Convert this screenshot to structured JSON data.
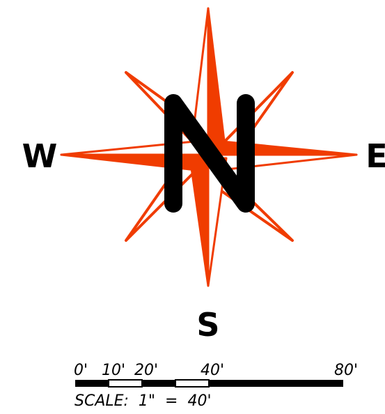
{
  "compass": {
    "north_letter": "N",
    "west_label": "W",
    "east_label": "E",
    "south_label": "S",
    "star_color": "#f03c00",
    "ink_color": "#000000"
  },
  "scale_bar": {
    "tick_labels": [
      "0'",
      "10'",
      "20'",
      "40'",
      "80'"
    ],
    "caption": "SCALE:  1\"  =  40'"
  }
}
